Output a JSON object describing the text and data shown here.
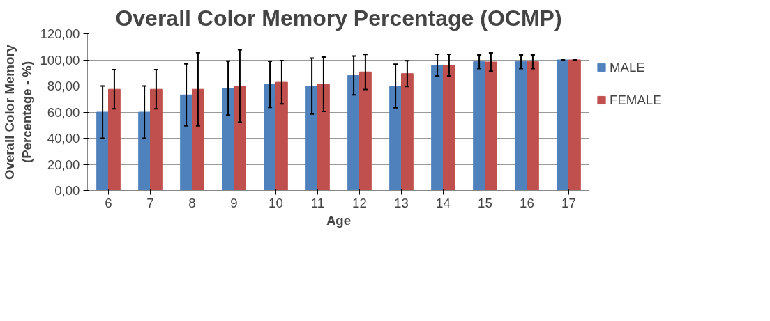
{
  "chart_data": {
    "type": "bar",
    "title": "Overall Color Memory Percentage (OCMP)",
    "xlabel": "Age",
    "ylabel": "Overall Color Memory\n(Percentage - %)",
    "categories": [
      "6",
      "7",
      "8",
      "9",
      "10",
      "11",
      "12",
      "13",
      "14",
      "15",
      "16",
      "17"
    ],
    "series": [
      {
        "name": "MALE",
        "color": "#4f81bd",
        "values": [
          60,
          60,
          73.2,
          78.4,
          81.3,
          80,
          88.1,
          80,
          96,
          98.6,
          98.6,
          100
        ],
        "errors": [
          20,
          20,
          23.7,
          20.7,
          17.7,
          21.4,
          14.9,
          16.7,
          8.3,
          5.2,
          5.2,
          0
        ]
      },
      {
        "name": "FEMALE",
        "color": "#c0504d",
        "values": [
          77.5,
          77.5,
          77.5,
          80,
          82.9,
          81.3,
          90.8,
          89.5,
          96,
          98.4,
          98.6,
          100
        ],
        "errors": [
          15,
          15,
          28,
          27.7,
          16.6,
          20.8,
          13.4,
          9.9,
          8.3,
          7,
          5.2,
          0
        ]
      }
    ],
    "ylim": [
      0,
      120
    ],
    "yticks": [
      {
        "value": 0,
        "label": "0,00"
      },
      {
        "value": 20,
        "label": "20,00"
      },
      {
        "value": 40,
        "label": "40,00"
      },
      {
        "value": 60,
        "label": "60,00"
      },
      {
        "value": 80,
        "label": "80,00"
      },
      {
        "value": 100,
        "label": "100,00"
      },
      {
        "value": 120,
        "label": "120,00"
      }
    ],
    "grid": "y",
    "legend": "right"
  }
}
